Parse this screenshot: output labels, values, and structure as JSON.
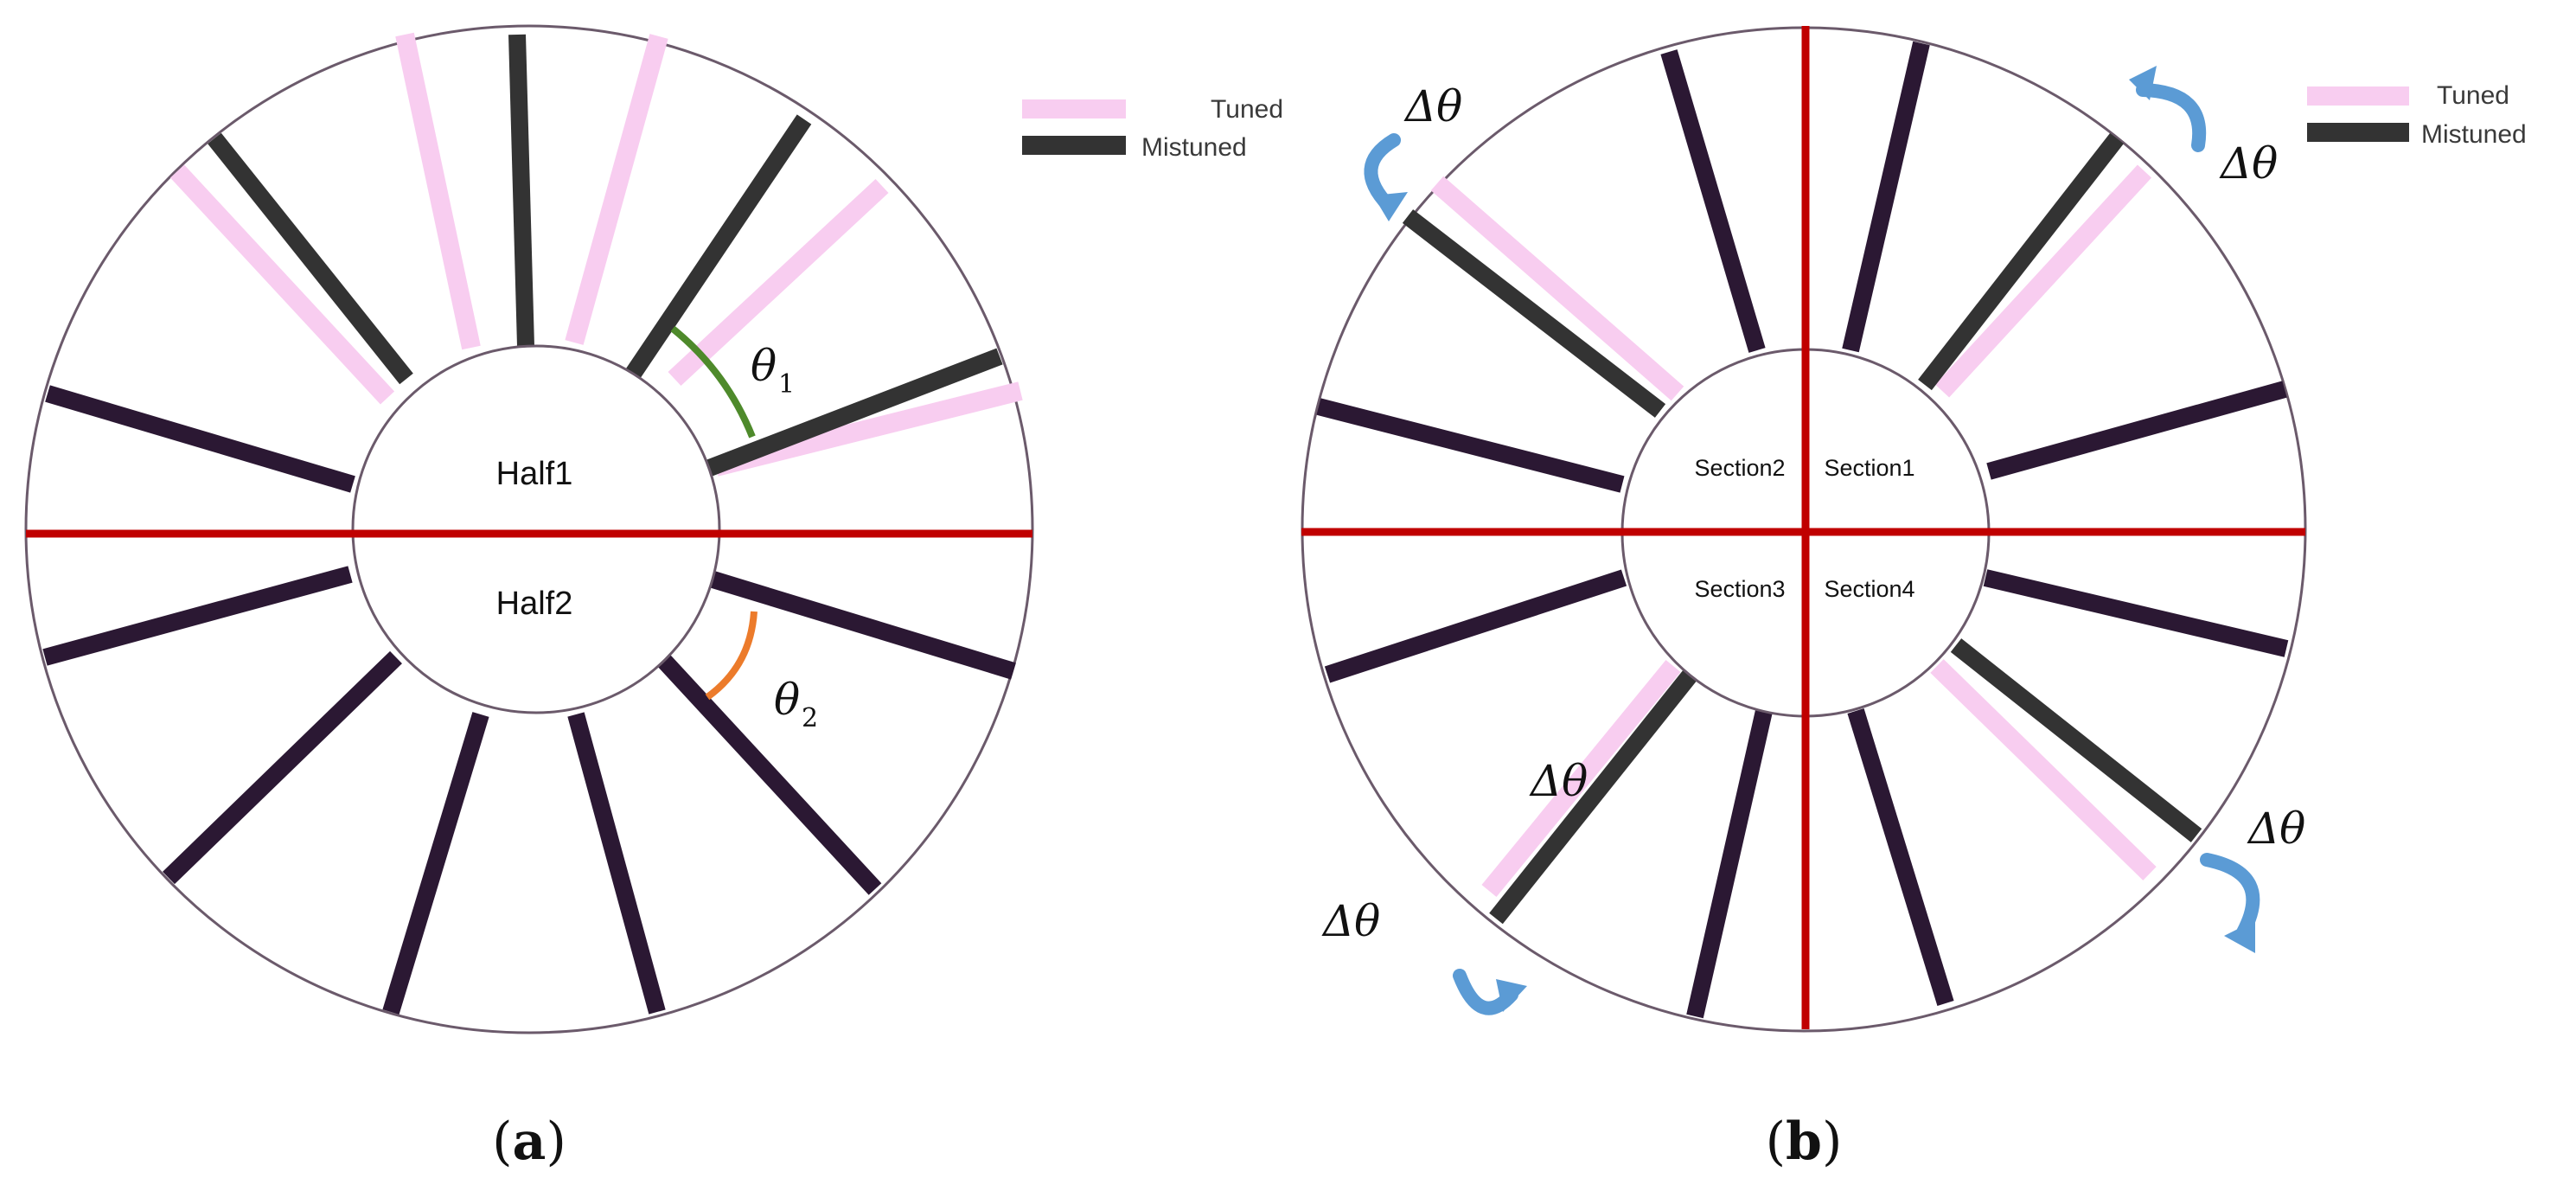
{
  "colors": {
    "tuned": "#f8cdf0",
    "mistuned_dark": "#2b1833",
    "mistuned_gray": "#333333",
    "divider": "#c00000",
    "theta1_arc": "#4e8a2b",
    "theta2_arc": "#ec7b2b",
    "rotation_arrow": "#5b9bd5",
    "rim": "#6b5a6b"
  },
  "legend": {
    "tuned_label": "Tuned",
    "mistuned_label": "Mistuned"
  },
  "panel_a": {
    "label_open": "(",
    "label_letter": "a",
    "label_close": ")",
    "half1_label": "Half1",
    "half2_label": "Half2",
    "theta1_symbol": "θ",
    "theta1_sub": "1",
    "theta2_symbol": "θ",
    "theta2_sub": "2"
  },
  "panel_b": {
    "label_open": "(",
    "label_letter": "b",
    "label_close": ")",
    "section1_label": "Section1",
    "section2_label": "Section2",
    "section3_label": "Section3",
    "section4_label": "Section4",
    "delta_theta": "Δθ"
  }
}
